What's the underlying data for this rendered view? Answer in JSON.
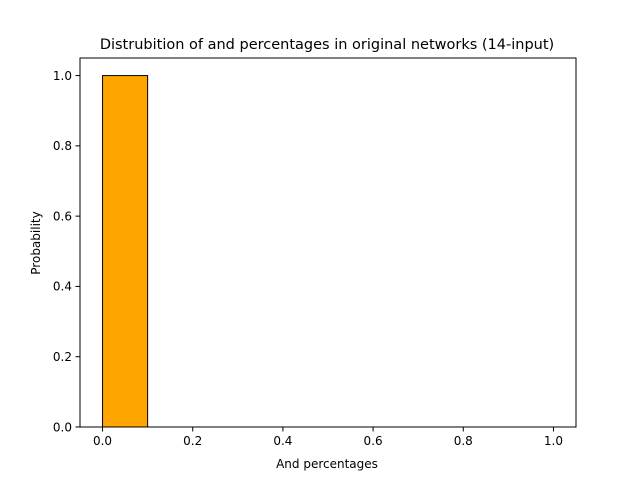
{
  "chart_data": {
    "type": "bar",
    "title": "Distrubition of and percentages in original networks (14-input)",
    "xlabel": "And percentages",
    "ylabel": "Probability",
    "xlim": [
      -0.05,
      1.05
    ],
    "ylim": [
      0,
      1.05
    ],
    "xticks": [
      0.0,
      0.2,
      0.4,
      0.6,
      0.8,
      1.0
    ],
    "xtick_labels": [
      "0.0",
      "0.2",
      "0.4",
      "0.6",
      "0.8",
      "1.0"
    ],
    "yticks": [
      0.0,
      0.2,
      0.4,
      0.6,
      0.8,
      1.0
    ],
    "ytick_labels": [
      "0.0",
      "0.2",
      "0.4",
      "0.6",
      "0.8",
      "1.0"
    ],
    "bins": [
      {
        "x0": 0.0,
        "x1": 0.1,
        "value": 1.0
      }
    ],
    "bar_color": "#ffa500",
    "edge_color": "#000000",
    "grid": false,
    "legend": "none"
  }
}
